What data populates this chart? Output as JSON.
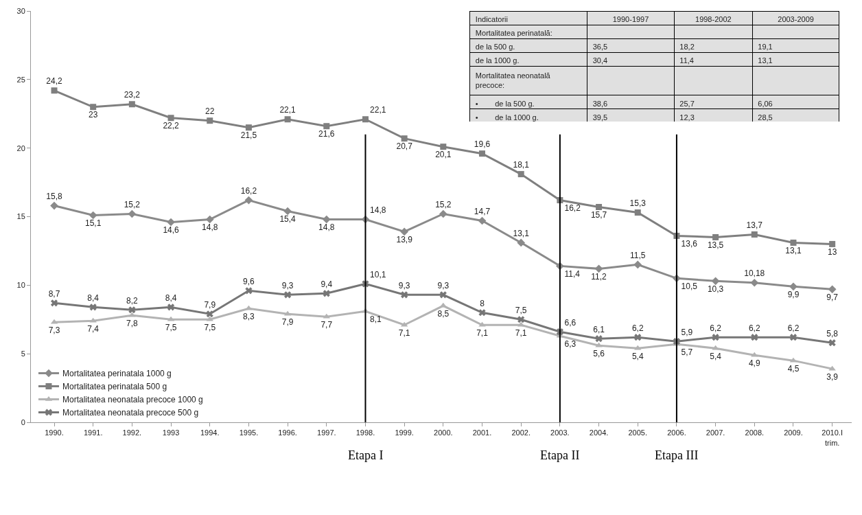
{
  "chart_data": [
    {
      "type": "line",
      "categories": [
        "1990.",
        "1991.",
        "1992.",
        "1993",
        "1994.",
        "1995.",
        "1996.",
        "1997.",
        "1998.",
        "1999.",
        "2000.",
        "2001.",
        "2002.",
        "2003.",
        "2004.",
        "2005.",
        "2006.",
        "2007.",
        "2008.",
        "2009.",
        "2010.I\ntrim."
      ],
      "series": [
        {
          "name": "Mortalitatea perinatala 1000 g",
          "color": "#8a8a8a",
          "marker": "diamond",
          "values": [
            15.8,
            15.1,
            15.2,
            14.6,
            14.8,
            16.2,
            15.4,
            14.8,
            14.8,
            13.9,
            15.2,
            14.7,
            13.1,
            11.4,
            11.2,
            11.5,
            10.5,
            10.3,
            10.18,
            9.9,
            9.7
          ],
          "value_labels": [
            "15,8",
            "15,1",
            "15,2",
            "14,6",
            "14,8",
            "16,2",
            "15,4",
            "14,8",
            "14,8",
            "13,9",
            "15,2",
            "14,7",
            "13,1",
            "11,4",
            "11,2",
            "11,5",
            "10,5",
            "10,3",
            "10,18",
            "9,9",
            "9,7"
          ]
        },
        {
          "name": "Mortalitatea perinatala 500 g",
          "color": "#7f7f7f",
          "marker": "square",
          "values": [
            24.2,
            23,
            23.2,
            22.2,
            22,
            21.5,
            22.1,
            21.6,
            22.1,
            20.7,
            20.1,
            19.6,
            18.1,
            16.2,
            15.7,
            15.3,
            13.6,
            13.5,
            13.7,
            13.1,
            13
          ],
          "value_labels": [
            "24,2",
            "23",
            "23,2",
            "22,2",
            "22",
            "21,5",
            "22,1",
            "21,6",
            "22,1",
            "20,7",
            "20,1",
            "19,6",
            "18,1",
            "16,2",
            "15,7",
            "15,3",
            "13,6",
            "13,5",
            "13,7",
            "13,1",
            "13"
          ]
        },
        {
          "name": "Mortalitatea neonatala precoce 1000 g",
          "color": "#b3b3b3",
          "marker": "triangle",
          "values": [
            7.3,
            7.4,
            7.8,
            7.5,
            7.5,
            8.3,
            7.9,
            7.7,
            8.1,
            7.1,
            8.5,
            7.1,
            7.1,
            6.3,
            5.6,
            5.4,
            5.7,
            5.4,
            4.9,
            4.5,
            3.9
          ],
          "value_labels": [
            "7,3",
            "7,4",
            "7,8",
            "7,5",
            "7,5",
            "8,3",
            "7,9",
            "7,7",
            "8,1",
            "7,1",
            "8,5",
            "7,1",
            "7,1",
            "6,3",
            "5,6",
            "5,4",
            "5,7",
            "5,4",
            "4,9",
            "4,5",
            "3,9"
          ]
        },
        {
          "name": "Mortalitatea neonatala precoce 500 g",
          "color": "#767676",
          "marker": "cross",
          "values": [
            8.7,
            8.4,
            8.2,
            8.4,
            7.9,
            9.6,
            9.3,
            9.4,
            10.1,
            9.3,
            9.3,
            8,
            7.5,
            6.6,
            6.1,
            6.2,
            5.9,
            6.2,
            6.2,
            6.2,
            5.8
          ],
          "value_labels": [
            "8,7",
            "8,4",
            "8,2",
            "8,4",
            "7,9",
            "9,6",
            "9,3",
            "9,4",
            "10,1",
            "9,3",
            "9,3",
            "8",
            "7,5",
            "6,6",
            "6,1",
            "6,2",
            "5,9",
            "6,2",
            "6,2",
            "6,2",
            "5,8"
          ]
        }
      ],
      "ylim": [
        0,
        30
      ],
      "yticks": [
        0,
        5,
        10,
        15,
        20,
        25,
        30
      ],
      "legend": "bottom left",
      "line_style": "solid",
      "ref_lines": [
        {
          "axis": "x",
          "value": "1998.",
          "label": "Etapa I",
          "color": "#000000"
        },
        {
          "axis": "x",
          "value": "2003.",
          "label": "Etapa II",
          "color": "#000000"
        },
        {
          "axis": "x",
          "value": "2006.",
          "label": "Etapa III",
          "color": "#000000"
        }
      ]
    },
    {
      "type": "other",
      "categories": [
        "Indicatorii",
        "1990-1997",
        "1998-2002",
        "2003-2009"
      ],
      "y_categories": [
        "Mortalitatea perinatală:",
        "de la 500 g.",
        "de la 1000 g.",
        "Mortalitatea neonatală precoce:",
        "•        de la 500 g.",
        "•        de la 1000 g."
      ],
      "cell_labels": [
        [
          null,
          null,
          null
        ],
        [
          "36,5",
          "18,2",
          "19,1"
        ],
        [
          "30,4",
          "11,4",
          "13,1"
        ],
        [
          null,
          null,
          null
        ],
        [
          "38,6",
          "25,7",
          "6,06"
        ],
        [
          "39,5",
          "12,3",
          "28,5"
        ]
      ]
    }
  ]
}
